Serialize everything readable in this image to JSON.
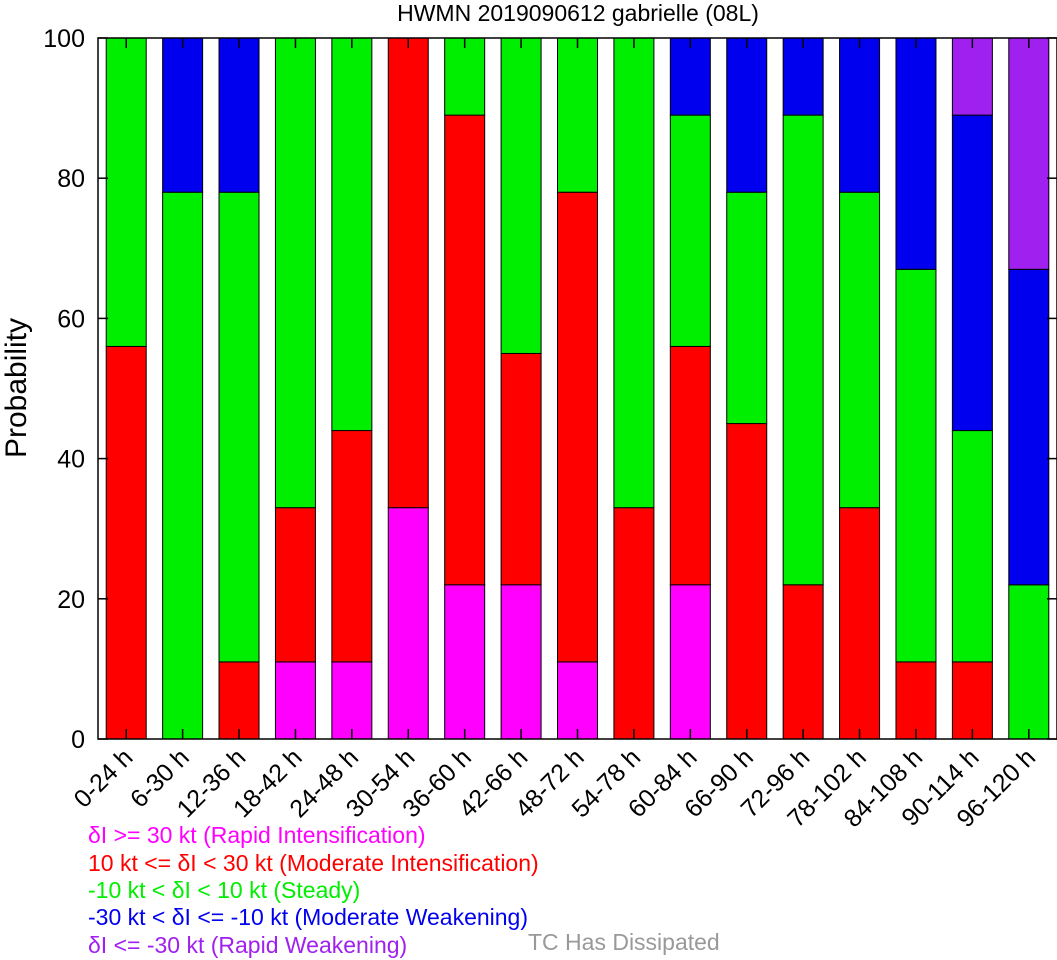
{
  "chart_data": {
    "type": "bar",
    "stacked": true,
    "title": "HWMN 2019090612 gabrielle (08L)",
    "xlabel": "",
    "ylabel": "Probability",
    "ylim": [
      0,
      100
    ],
    "yticks": [
      0,
      20,
      40,
      60,
      80,
      100
    ],
    "grid": false,
    "legend_placement": "bottom",
    "categories": [
      "0-24 h",
      "6-30 h",
      "12-36 h",
      "18-42 h",
      "24-48 h",
      "30-54 h",
      "36-60 h",
      "42-66 h",
      "48-72 h",
      "54-78 h",
      "60-84 h",
      "66-90 h",
      "72-96 h",
      "78-102 h",
      "84-108 h",
      "90-114 h",
      "96-120 h"
    ],
    "series": [
      {
        "name": "δI >= 30 kt (Rapid Intensification)",
        "color": "#ff00ff",
        "values": [
          0,
          0,
          0,
          11,
          11,
          33,
          22,
          22,
          11,
          0,
          22,
          0,
          0,
          0,
          0,
          0,
          0
        ]
      },
      {
        "name": "10 kt <= δI < 30 kt (Moderate Intensification)",
        "color": "#ff0000",
        "values": [
          56,
          0,
          11,
          22,
          33,
          67,
          67,
          33,
          67,
          33,
          34,
          45,
          22,
          33,
          11,
          11,
          0
        ]
      },
      {
        "name": "-10 kt < δI < 10 kt (Steady)",
        "color": "#00ee00",
        "values": [
          44,
          78,
          67,
          67,
          56,
          0,
          11,
          45,
          22,
          67,
          33,
          33,
          67,
          45,
          56,
          33,
          22
        ]
      },
      {
        "name": "-30 kt < δI <= -10 kt (Moderate Weakening)",
        "color": "#0000ee",
        "values": [
          0,
          22,
          22,
          0,
          0,
          0,
          0,
          0,
          0,
          0,
          11,
          22,
          11,
          22,
          33,
          45,
          45
        ]
      },
      {
        "name": "δI <= -30 kt (Rapid Weakening)",
        "color": "#a020f0",
        "values": [
          0,
          0,
          0,
          0,
          0,
          0,
          0,
          0,
          0,
          0,
          0,
          0,
          0,
          0,
          0,
          11,
          33
        ]
      }
    ]
  },
  "dissipated_label": "TC Has Dissipated",
  "dissipated_color": "#999999"
}
